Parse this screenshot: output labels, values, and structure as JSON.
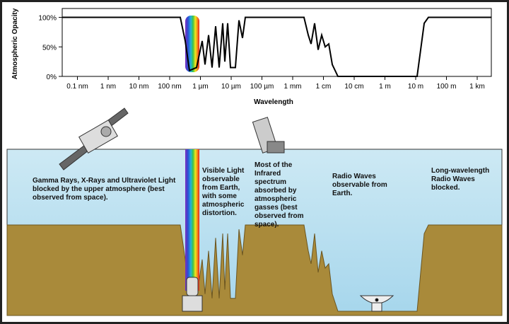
{
  "chart_data": {
    "type": "line",
    "ylabel": "Atmospheric Opacity",
    "xlabel": "Wavelength",
    "log_x": true,
    "xlim": [
      0.032,
      2880000000000.0
    ],
    "xticks": [
      {
        "value": 0.1,
        "label": "0.1 nm"
      },
      {
        "value": 1,
        "label": "1 nm"
      },
      {
        "value": 10,
        "label": "10 nm"
      },
      {
        "value": 100,
        "label": "100 nm"
      },
      {
        "value": 1000,
        "label": "1 µm"
      },
      {
        "value": 10000,
        "label": "10 µm"
      },
      {
        "value": 100000,
        "label": "100 µm"
      },
      {
        "value": 1000000,
        "label": "1 mm"
      },
      {
        "value": 10000000,
        "label": "1 cm"
      },
      {
        "value": 100000000,
        "label": "10 cm"
      },
      {
        "value": 1000000000,
        "label": "1 m"
      },
      {
        "value": 10000000000,
        "label": "10 m"
      },
      {
        "value": 100000000000,
        "label": "100 m"
      },
      {
        "value": 1000000000000,
        "label": "1 km"
      }
    ],
    "ylim": [
      0,
      115
    ],
    "yticks": [
      {
        "value": 0,
        "label": "0%"
      },
      {
        "value": 50,
        "label": "50%"
      },
      {
        "value": 100,
        "label": "100%"
      }
    ],
    "series": [
      {
        "color": "#000000",
        "x": [
          0.032,
          221,
          320,
          440,
          748,
          1140,
          1410,
          1840,
          2390,
          3120,
          4070,
          5300,
          6210,
          7680,
          9480,
          13700,
          17900,
          23300,
          28800,
          2330000,
          3210000,
          3960000,
          5160000,
          6730000,
          8770000,
          11400000,
          14900000,
          19400000,
          29600000,
          11100000000,
          18900000000,
          25900000000,
          2880000000000
        ],
        "values": [
          100,
          100,
          60,
          10,
          15,
          60,
          20,
          70,
          15,
          85,
          15,
          90,
          25,
          90,
          15,
          15,
          95,
          65,
          100,
          100,
          70,
          55,
          90,
          45,
          70,
          50,
          55,
          20,
          0,
          0,
          90,
          100,
          100
        ]
      }
    ],
    "annotations": [
      "Gamma Rays, X-Rays and Ultraviolet Light blocked by the upper atmosphere (best observed from space).",
      "Visible Light observable from Earth, with some atmospheric distortion.",
      "Most of the Infrared spectrum absorbed by atmospheric gasses (best observed from space).",
      "Radio Waves observable from Earth.",
      "Long-wavelength Radio Waves blocked."
    ]
  }
}
